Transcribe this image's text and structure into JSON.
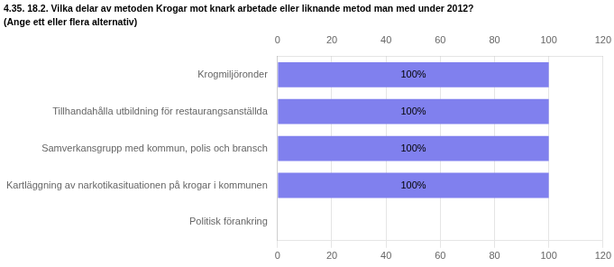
{
  "chart_data": {
    "type": "bar",
    "orientation": "horizontal",
    "title": "4.35. 18.2. Vilka delar av metoden Krogar mot knark arbetade eller liknande metod man med under 2012?",
    "subtitle": "(Ange ett eller flera alternativ)",
    "categories": [
      "Krogmiljöronder",
      "Tillhandahålla utbildning för restaurangsanställda",
      "Samverkansgrupp med kommun, polis och bransch",
      "Kartläggning av narkotikasituationen på krogar i kommunen",
      "Politisk förankring"
    ],
    "values": [
      100,
      100,
      100,
      100,
      0
    ],
    "value_labels": [
      "100%",
      "100%",
      "100%",
      "100%",
      null
    ],
    "data_labels": true,
    "color": "#8080ee",
    "xlim": [
      0,
      120
    ],
    "xticks": [
      0,
      20,
      40,
      60,
      80,
      100,
      120
    ],
    "grid": true
  }
}
